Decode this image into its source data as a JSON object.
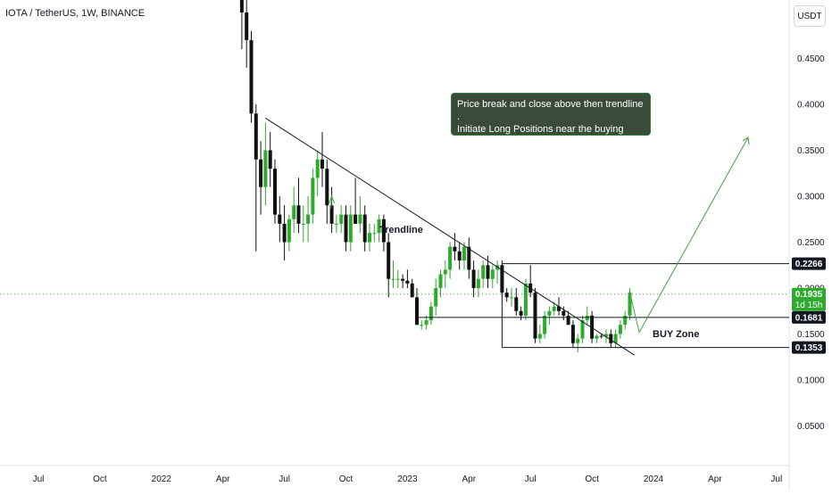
{
  "title": "IOTA / TetherUS, 1W, BINANCE",
  "currency": "USDT",
  "chart_data": {
    "type": "candlestick",
    "title": "IOTA / TetherUS, 1W, BINANCE",
    "ylim": [
      0.0,
      0.51
    ],
    "y_ticks": [
      {
        "value": 0.45,
        "label": "0.4500"
      },
      {
        "value": 0.4,
        "label": "0.4000"
      },
      {
        "value": 0.35,
        "label": "0.3500"
      },
      {
        "value": 0.3,
        "label": "0.3000"
      },
      {
        "value": 0.25,
        "label": "0.2500"
      },
      {
        "value": 0.2,
        "label": "0.2000"
      },
      {
        "value": 0.15,
        "label": "0.1500"
      },
      {
        "value": 0.1,
        "label": "0.1000"
      },
      {
        "value": 0.05,
        "label": "0.0500"
      }
    ],
    "x_ticks": [
      {
        "t": 0,
        "label": "Jul"
      },
      {
        "t": 13,
        "label": "Oct"
      },
      {
        "t": 26,
        "label": "2022"
      },
      {
        "t": 39,
        "label": "Apr"
      },
      {
        "t": 52,
        "label": "Jul"
      },
      {
        "t": 65,
        "label": "Oct"
      },
      {
        "t": 78,
        "label": "2023"
      },
      {
        "t": 91,
        "label": "Apr"
      },
      {
        "t": 104,
        "label": "Jul"
      },
      {
        "t": 117,
        "label": "Oct"
      },
      {
        "t": 130,
        "label": "2024"
      },
      {
        "t": 143,
        "label": "Apr"
      },
      {
        "t": 156,
        "label": "Jul"
      }
    ],
    "candles_start_week": 43,
    "candles": [
      [
        0.52,
        0.55,
        0.46,
        0.5
      ],
      [
        0.5,
        0.52,
        0.44,
        0.47
      ],
      [
        0.47,
        0.48,
        0.38,
        0.39
      ],
      [
        0.39,
        0.4,
        0.24,
        0.34
      ],
      [
        0.34,
        0.36,
        0.28,
        0.31
      ],
      [
        0.31,
        0.38,
        0.29,
        0.35
      ],
      [
        0.35,
        0.37,
        0.31,
        0.33
      ],
      [
        0.33,
        0.34,
        0.27,
        0.28
      ],
      [
        0.28,
        0.3,
        0.25,
        0.27
      ],
      [
        0.27,
        0.29,
        0.23,
        0.25
      ],
      [
        0.25,
        0.28,
        0.24,
        0.275
      ],
      [
        0.275,
        0.31,
        0.26,
        0.29
      ],
      [
        0.29,
        0.32,
        0.26,
        0.27
      ],
      [
        0.27,
        0.29,
        0.25,
        0.27
      ],
      [
        0.27,
        0.3,
        0.25,
        0.28
      ],
      [
        0.28,
        0.33,
        0.27,
        0.32
      ],
      [
        0.32,
        0.35,
        0.3,
        0.34
      ],
      [
        0.34,
        0.37,
        0.31,
        0.33
      ],
      [
        0.33,
        0.34,
        0.27,
        0.29
      ],
      [
        0.29,
        0.31,
        0.26,
        0.27
      ],
      [
        0.27,
        0.28,
        0.26,
        0.27
      ],
      [
        0.27,
        0.29,
        0.26,
        0.28
      ],
      [
        0.28,
        0.29,
        0.24,
        0.25
      ],
      [
        0.25,
        0.29,
        0.24,
        0.28
      ],
      [
        0.28,
        0.32,
        0.27,
        0.27
      ],
      [
        0.27,
        0.3,
        0.26,
        0.28
      ],
      [
        0.28,
        0.29,
        0.24,
        0.25
      ],
      [
        0.25,
        0.27,
        0.24,
        0.26
      ],
      [
        0.26,
        0.27,
        0.25,
        0.26
      ],
      [
        0.26,
        0.28,
        0.25,
        0.275
      ],
      [
        0.275,
        0.28,
        0.24,
        0.25
      ],
      [
        0.25,
        0.26,
        0.19,
        0.21
      ],
      [
        0.21,
        0.23,
        0.2,
        0.21
      ],
      [
        0.21,
        0.22,
        0.2,
        0.21
      ],
      [
        0.21,
        0.215,
        0.2,
        0.208
      ],
      [
        0.208,
        0.22,
        0.2,
        0.205
      ],
      [
        0.205,
        0.21,
        0.19,
        0.19
      ],
      [
        0.19,
        0.2,
        0.16,
        0.16
      ],
      [
        0.16,
        0.165,
        0.155,
        0.16
      ],
      [
        0.16,
        0.17,
        0.155,
        0.165
      ],
      [
        0.165,
        0.185,
        0.16,
        0.18
      ],
      [
        0.18,
        0.21,
        0.17,
        0.2
      ],
      [
        0.2,
        0.22,
        0.19,
        0.215
      ],
      [
        0.215,
        0.23,
        0.2,
        0.22
      ],
      [
        0.22,
        0.25,
        0.21,
        0.245
      ],
      [
        0.245,
        0.26,
        0.23,
        0.24
      ],
      [
        0.24,
        0.25,
        0.22,
        0.23
      ],
      [
        0.23,
        0.25,
        0.22,
        0.245
      ],
      [
        0.245,
        0.255,
        0.21,
        0.22
      ],
      [
        0.22,
        0.23,
        0.19,
        0.2
      ],
      [
        0.2,
        0.22,
        0.19,
        0.21
      ],
      [
        0.21,
        0.23,
        0.2,
        0.225
      ],
      [
        0.225,
        0.235,
        0.2,
        0.21
      ],
      [
        0.21,
        0.225,
        0.2,
        0.22
      ],
      [
        0.22,
        0.23,
        0.205,
        0.225
      ],
      [
        0.225,
        0.23,
        0.19,
        0.195
      ],
      [
        0.195,
        0.2,
        0.185,
        0.19
      ],
      [
        0.19,
        0.2,
        0.18,
        0.19
      ],
      [
        0.19,
        0.2,
        0.17,
        0.175
      ],
      [
        0.175,
        0.18,
        0.165,
        0.17
      ],
      [
        0.17,
        0.21,
        0.165,
        0.205
      ],
      [
        0.205,
        0.225,
        0.19,
        0.195
      ],
      [
        0.195,
        0.2,
        0.14,
        0.145
      ],
      [
        0.145,
        0.16,
        0.14,
        0.15
      ],
      [
        0.15,
        0.175,
        0.145,
        0.17
      ],
      [
        0.17,
        0.18,
        0.16,
        0.175
      ],
      [
        0.175,
        0.185,
        0.17,
        0.18
      ],
      [
        0.18,
        0.19,
        0.17,
        0.175
      ],
      [
        0.175,
        0.18,
        0.165,
        0.17
      ],
      [
        0.17,
        0.175,
        0.16,
        0.16
      ],
      [
        0.16,
        0.165,
        0.135,
        0.14
      ],
      [
        0.14,
        0.15,
        0.13,
        0.145
      ],
      [
        0.145,
        0.17,
        0.14,
        0.165
      ],
      [
        0.165,
        0.18,
        0.16,
        0.17
      ],
      [
        0.17,
        0.175,
        0.14,
        0.145
      ],
      [
        0.145,
        0.15,
        0.14,
        0.148
      ],
      [
        0.148,
        0.15,
        0.145,
        0.147
      ],
      [
        0.147,
        0.155,
        0.14,
        0.15
      ],
      [
        0.15,
        0.155,
        0.135,
        0.14
      ],
      [
        0.14,
        0.155,
        0.135,
        0.15
      ],
      [
        0.15,
        0.165,
        0.145,
        0.16
      ],
      [
        0.16,
        0.175,
        0.155,
        0.17
      ],
      [
        0.17,
        0.2,
        0.165,
        0.195
      ]
    ],
    "price_labels": [
      {
        "value": 0.2266,
        "label": "0.2266",
        "style": "dark"
      },
      {
        "value": 0.1935,
        "label": "0.1935",
        "sublabel": "1d 15h",
        "style": "green"
      },
      {
        "value": 0.1681,
        "label": "0.1681",
        "style": "dark"
      },
      {
        "value": 0.1353,
        "label": "0.1353",
        "style": "dark"
      }
    ],
    "current_price": 0.1935,
    "annotations": {
      "trendline_label": "Trendline",
      "buy_zone_label": "BUY Zone",
      "note_line1": "Price break and close above then trendline .",
      "note_line2": "Initiate Long Positions near the buying zone ."
    },
    "colors": {
      "up": "#2eab2e",
      "down": "#111111",
      "projection": "#43a047",
      "current_price": "#2eab2e",
      "note_bg": "#3a4b3a"
    }
  }
}
